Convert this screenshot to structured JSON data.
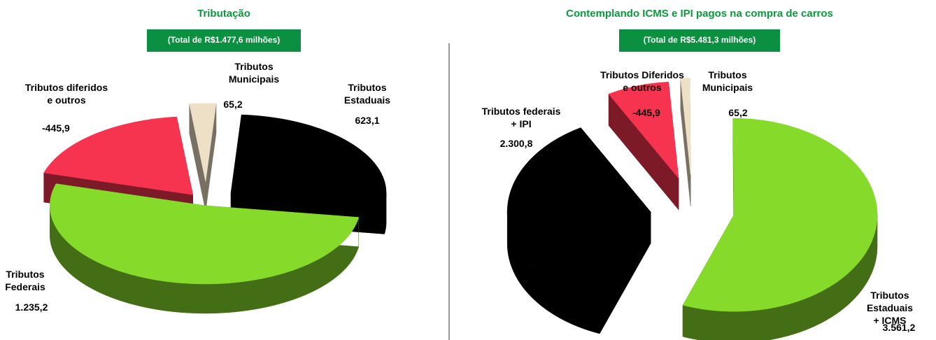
{
  "chart_data": [
    {
      "type": "pie3d",
      "title": "Tributação",
      "subtitle": "(Total de R$1.477,6 milhões)",
      "categories": [
        "Tributos\nMunicipais",
        "Tributos\nEstaduais",
        "Tributos\nFederais",
        "Tributos diferidos\ne outros"
      ],
      "values": [
        65.2,
        623.1,
        1235.2,
        -445.9
      ],
      "value_labels": [
        "65,2",
        "623,1",
        "1.235,2",
        "-445,9"
      ],
      "colors": [
        "#ede0c6",
        "#000000",
        "#86db2a",
        "#f7344f"
      ]
    },
    {
      "type": "pie3d",
      "title": "Contemplando ICMS e IPI pagos na compra de carros",
      "subtitle": "(Total de R$5.481,3 milhões)",
      "categories": [
        "Tributos\nMunicipais",
        "Tributos Estaduais\n+ ICMS",
        "Tributos federais\n+ IPI",
        "Tributos Diferidos\ne outros"
      ],
      "values": [
        65.2,
        3561.2,
        2300.8,
        -445.9
      ],
      "value_labels": [
        "65,2",
        "3.561,2",
        "2.300,8",
        "-445,9"
      ],
      "colors": [
        "#ede0c6",
        "#86db2a",
        "#000000",
        "#f7344f"
      ]
    }
  ]
}
